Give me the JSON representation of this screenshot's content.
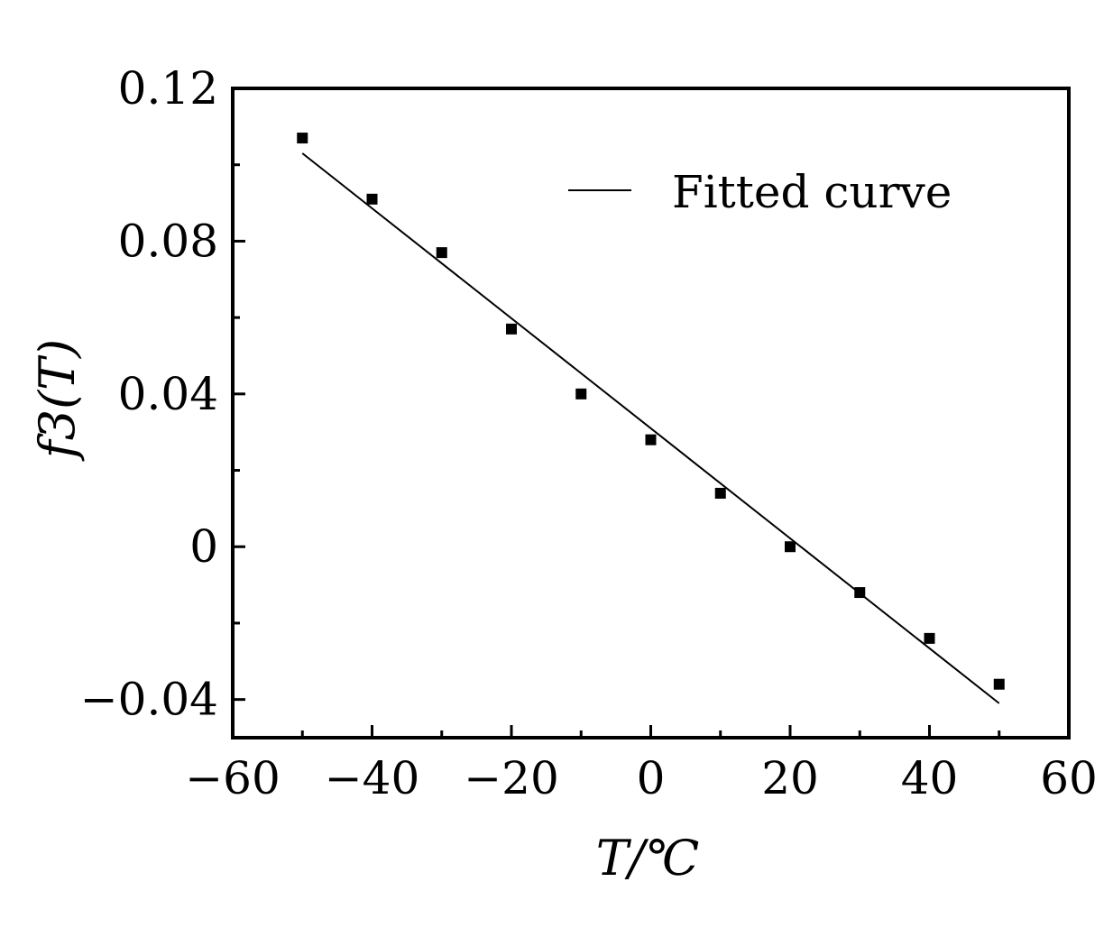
{
  "chart_data": {
    "type": "scatter",
    "xlabel": "T/℃",
    "ylabel": "f3(T)",
    "xlim": [
      -60,
      60
    ],
    "ylim": [
      -0.05,
      0.12
    ],
    "x_ticks": [
      -60,
      -40,
      -20,
      0,
      20,
      40,
      60
    ],
    "x_tick_labels": [
      "−60",
      "−40",
      "−20",
      "0",
      "20",
      "40",
      "60"
    ],
    "y_ticks": [
      -0.04,
      0,
      0.04,
      0.08,
      0.12
    ],
    "y_tick_labels": [
      "−0.04",
      "0",
      "0.04",
      "0.08",
      "0.12"
    ],
    "grid": false,
    "legend_position": "top-right",
    "series": [
      {
        "type": "scatter",
        "x": [
          -50,
          -40,
          -30,
          -20,
          -10,
          0,
          10,
          20,
          30,
          40,
          50
        ],
        "y": [
          0.107,
          0.091,
          0.077,
          0.057,
          0.04,
          0.028,
          0.014,
          0.0,
          -0.012,
          -0.024,
          -0.036
        ]
      },
      {
        "type": "line",
        "name": "Fitted curve",
        "x": [
          -50,
          50
        ],
        "y": [
          0.103,
          -0.041
        ]
      }
    ]
  }
}
